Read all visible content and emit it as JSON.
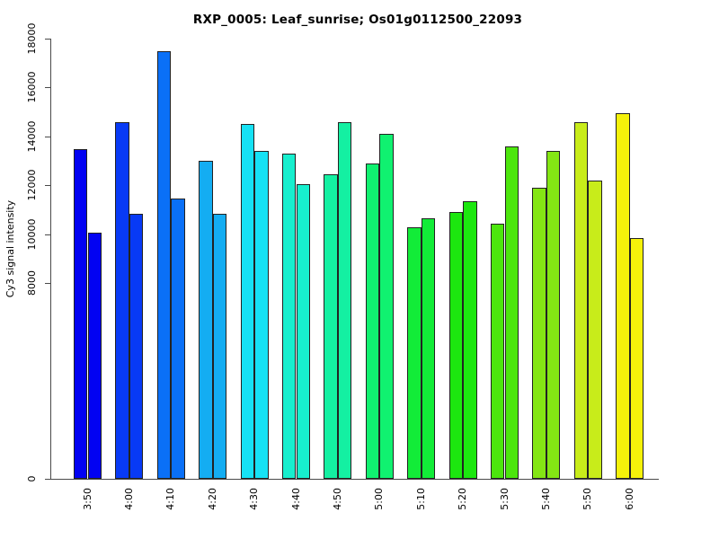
{
  "chart_data": {
    "type": "bar",
    "title": "RXP_0005: Leaf_sunrise; Os01g0112500_22093",
    "xlabel": "",
    "ylabel": "Cy3 signal intensity",
    "categories": [
      "3:50",
      "4:00",
      "4:10",
      "4:20",
      "4:30",
      "4:40",
      "4:50",
      "5:00",
      "5:10",
      "5:20",
      "5:30",
      "5:40",
      "5:50",
      "6:00"
    ],
    "series": [
      {
        "name": "left-bar",
        "values": [
          13500,
          14600,
          17500,
          13000,
          14500,
          13300,
          12450,
          12900,
          10300,
          10900,
          10450,
          11900,
          14600,
          14950
        ]
      },
      {
        "name": "right-bar",
        "values": [
          10050,
          10850,
          11450,
          10850,
          13400,
          12050,
          14600,
          14100,
          10650,
          11350,
          13600,
          13400,
          12200,
          9850
        ]
      }
    ],
    "bar_colors": [
      "#0202f2",
      "#083af5",
      "#0a70f7",
      "#14adf2",
      "#16e2f5",
      "#17efce",
      "#14f0a2",
      "#10f170",
      "#12ec38",
      "#1ce70f",
      "#4ce60d",
      "#84e614",
      "#c8ec1a",
      "#f5f20a"
    ],
    "bar_border_color": "#222222",
    "axis_color": "#4a4a4a",
    "text_color": "#000000",
    "background_color": "#ffffff",
    "ylim": [
      0,
      18000
    ],
    "yticks": [
      0,
      8000,
      10000,
      12000,
      14000,
      16000,
      18000
    ],
    "grid": false,
    "legend": "none"
  }
}
